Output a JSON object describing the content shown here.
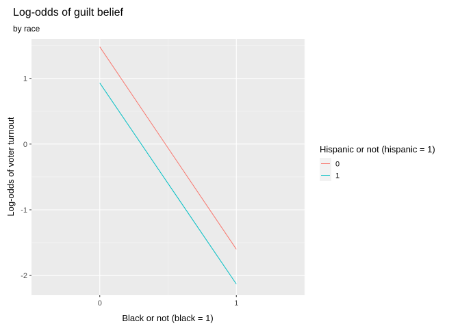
{
  "chart_data": {
    "type": "line",
    "title": "Log-odds of guilt belief",
    "subtitle": "by race",
    "xlabel": "Black or not (black = 1)",
    "ylabel": "Log-odds of voter turnout",
    "xlim": [
      -0.5,
      1.5
    ],
    "ylim": [
      -2.3,
      1.6
    ],
    "x_ticks": [
      0,
      1
    ],
    "x_tick_labels": [
      "0",
      "1"
    ],
    "y_ticks": [
      -2,
      -1,
      0,
      1
    ],
    "y_tick_labels": [
      "-2",
      "-1",
      "0",
      "1"
    ],
    "y_minor_ticks": [
      -1.5,
      -0.5,
      0.5,
      1.5
    ],
    "x_minor_ticks": [
      -0.5,
      0.5,
      1.5
    ],
    "grid": true,
    "legend": {
      "title": "Hispanic or not (hispanic = 1)",
      "position": "right"
    },
    "series": [
      {
        "name": "0",
        "color": "#F8766D",
        "x": [
          0,
          1
        ],
        "y": [
          1.48,
          -1.6
        ]
      },
      {
        "name": "1",
        "color": "#00BFC4",
        "x": [
          0,
          1
        ],
        "y": [
          0.93,
          -2.13
        ]
      }
    ]
  }
}
